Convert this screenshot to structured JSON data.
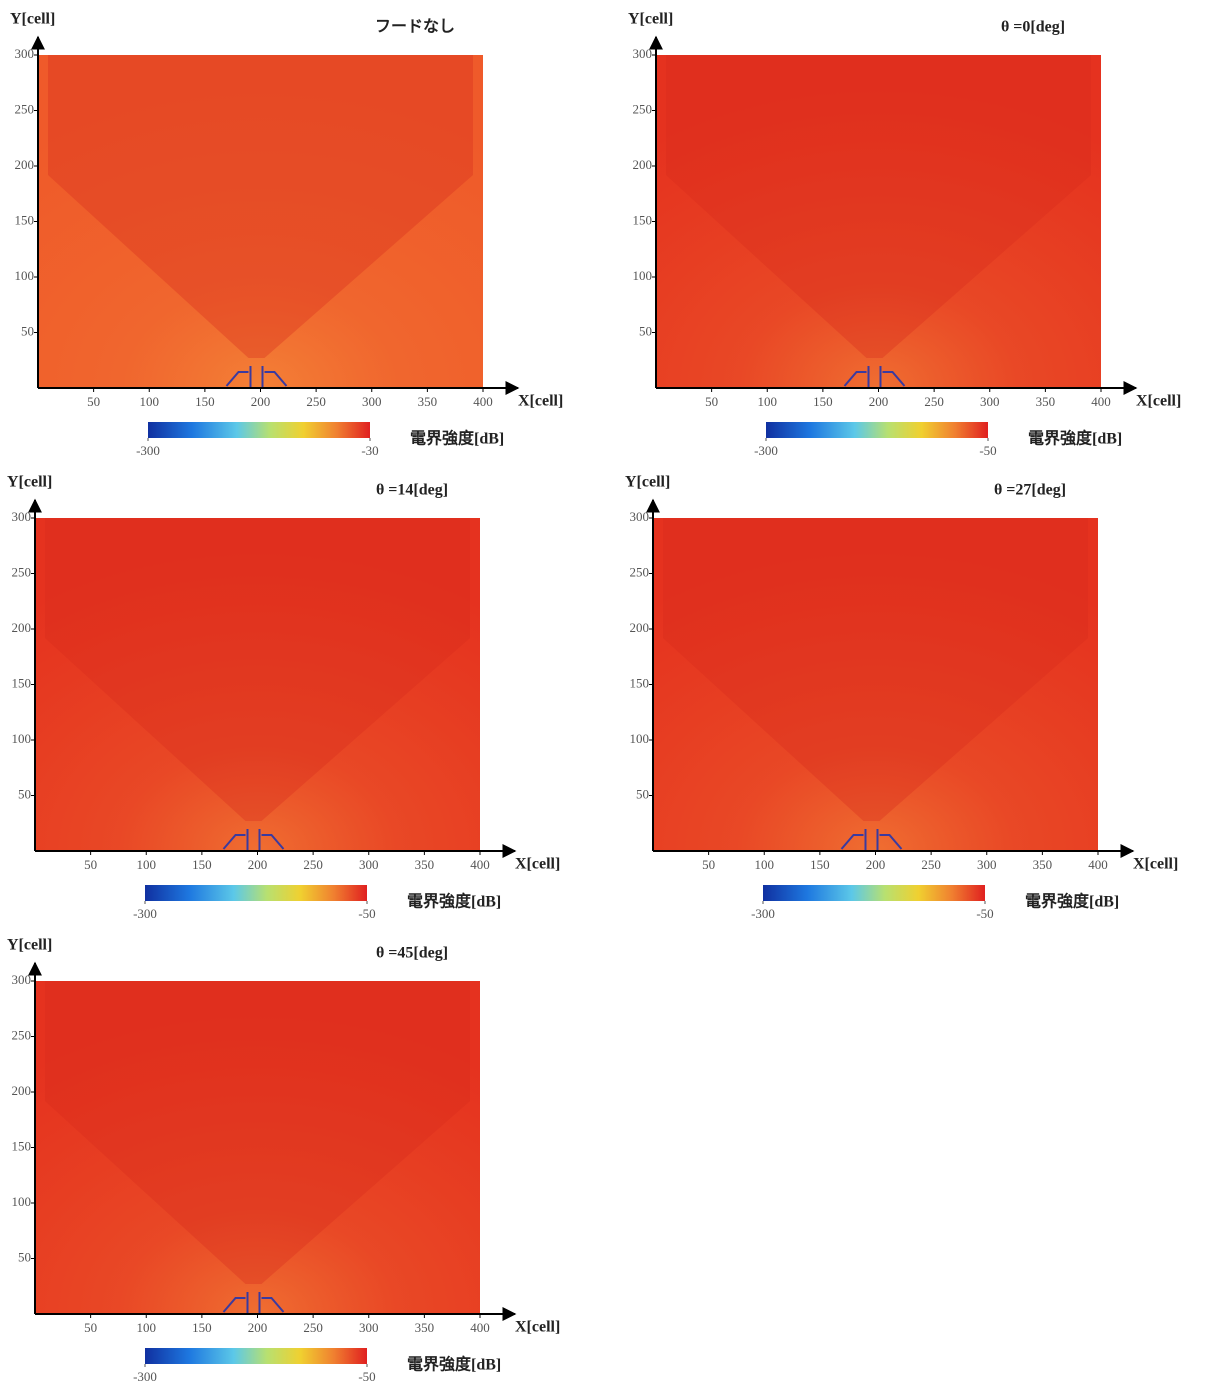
{
  "chart_data": [
    {
      "type": "heatmap",
      "title": "フードなし",
      "xlabel": "X[cell]",
      "ylabel": "Y[cell]",
      "color": "#ef5a2a",
      "xlim": [
        0,
        400
      ],
      "ylim": [
        0,
        300
      ],
      "xticks": [
        50,
        100,
        150,
        200,
        250,
        300,
        350,
        400
      ],
      "yticks": [
        50,
        100,
        150,
        200,
        250,
        300
      ],
      "colorbar": {
        "label": "電界強度[dB]",
        "lim": [
          -300,
          -30
        ],
        "ticks": [
          -300,
          -30
        ]
      }
    },
    {
      "type": "heatmap",
      "title": "θ =0[deg]",
      "xlabel": "X[cell]",
      "ylabel": "Y[cell]",
      "color": "#e5321f",
      "xlim": [
        0,
        400
      ],
      "ylim": [
        0,
        300
      ],
      "xticks": [
        50,
        100,
        150,
        200,
        250,
        300,
        350,
        400
      ],
      "yticks": [
        50,
        100,
        150,
        200,
        250,
        300
      ],
      "colorbar": {
        "label": "電界強度[dB]",
        "lim": [
          -300,
          -50
        ],
        "ticks": [
          -300,
          -50
        ]
      }
    },
    {
      "type": "heatmap",
      "title": "θ =14[deg]",
      "xlabel": "X[cell]",
      "ylabel": "Y[cell]",
      "color": "#e5321f",
      "xlim": [
        0,
        400
      ],
      "ylim": [
        0,
        300
      ],
      "xticks": [
        50,
        100,
        150,
        200,
        250,
        300,
        350,
        400
      ],
      "yticks": [
        50,
        100,
        150,
        200,
        250,
        300
      ],
      "colorbar": {
        "label": "電界強度[dB]",
        "lim": [
          -300,
          -50
        ],
        "ticks": [
          -300,
          -50
        ]
      }
    },
    {
      "type": "heatmap",
      "title": "θ =27[deg]",
      "xlabel": "X[cell]",
      "ylabel": "Y[cell]",
      "color": "#e5321f",
      "xlim": [
        0,
        400
      ],
      "ylim": [
        0,
        300
      ],
      "xticks": [
        50,
        100,
        150,
        200,
        250,
        300,
        350,
        400
      ],
      "yticks": [
        50,
        100,
        150,
        200,
        250,
        300
      ],
      "colorbar": {
        "label": "電界強度[dB]",
        "lim": [
          -300,
          -50
        ],
        "ticks": [
          -300,
          -50
        ]
      }
    },
    {
      "type": "heatmap",
      "title": "θ =45[deg]",
      "xlabel": "X[cell]",
      "ylabel": "Y[cell]",
      "color": "#e5321f",
      "xlim": [
        0,
        400
      ],
      "ylim": [
        0,
        300
      ],
      "xticks": [
        50,
        100,
        150,
        200,
        250,
        300,
        350,
        400
      ],
      "yticks": [
        50,
        100,
        150,
        200,
        250,
        300
      ],
      "colorbar": {
        "label": "電界強度[dB]",
        "lim": [
          -300,
          -50
        ],
        "ticks": [
          -300,
          -50
        ]
      }
    }
  ]
}
